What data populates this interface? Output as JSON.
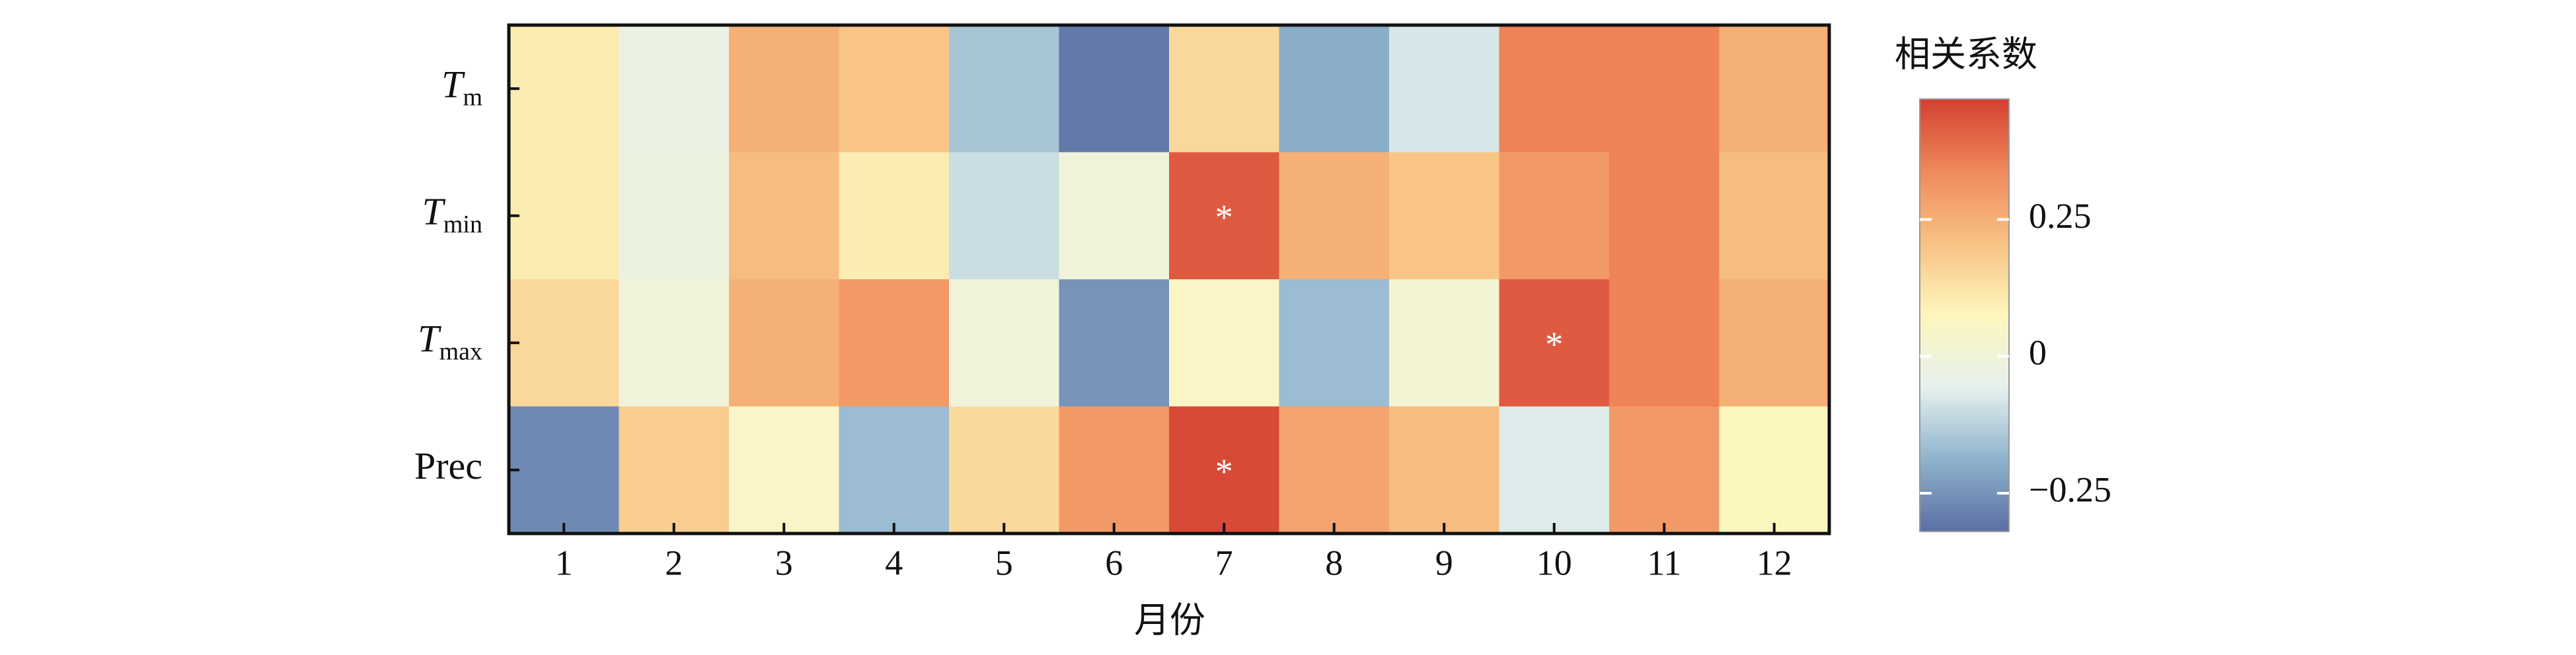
{
  "chart_data": {
    "type": "heatmap",
    "x_label": "月份",
    "categories": [
      "1",
      "2",
      "3",
      "4",
      "5",
      "6",
      "7",
      "8",
      "9",
      "10",
      "11",
      "12"
    ],
    "rows": [
      {
        "symbol": "T",
        "subscript": "m",
        "italic": true
      },
      {
        "symbol": "T",
        "subscript": "min",
        "italic": true
      },
      {
        "symbol": "T",
        "subscript": "max",
        "italic": true
      },
      {
        "symbol": "Prec",
        "italic": false
      }
    ],
    "z": [
      [
        0.1,
        -0.03,
        0.25,
        0.2,
        -0.15,
        -0.3,
        0.15,
        -0.2,
        -0.08,
        0.35,
        0.35,
        0.25
      ],
      [
        0.1,
        -0.02,
        0.22,
        0.1,
        -0.1,
        0.0,
        0.42,
        0.25,
        0.2,
        0.3,
        0.35,
        0.22
      ],
      [
        0.15,
        0.0,
        0.25,
        0.3,
        0.0,
        -0.25,
        0.05,
        -0.17,
        0.02,
        0.42,
        0.35,
        0.25
      ],
      [
        -0.27,
        0.18,
        0.05,
        -0.17,
        0.15,
        0.3,
        0.45,
        0.28,
        0.22,
        -0.07,
        0.3,
        0.07
      ]
    ],
    "cell_labels": [
      [
        null,
        null,
        null,
        null,
        null,
        null,
        null,
        null,
        null,
        null,
        null,
        null
      ],
      [
        null,
        null,
        null,
        null,
        null,
        null,
        "*",
        null,
        null,
        null,
        null,
        null
      ],
      [
        null,
        null,
        null,
        null,
        null,
        null,
        null,
        null,
        null,
        "*",
        null,
        null
      ],
      [
        null,
        null,
        null,
        null,
        null,
        null,
        "*",
        null,
        null,
        null,
        null,
        null
      ]
    ],
    "colorbar_title": "相关系数",
    "zlim": [
      -0.32,
      0.47
    ],
    "zticks": [
      {
        "value": -0.25,
        "label": "−0.25"
      },
      0,
      0.25
    ],
    "colormap": [
      "#5b6fa3",
      "#8fb3cc",
      "#e6f1ee",
      "#fdf6bd",
      "#f8c283",
      "#ef8a5a",
      "#d43f31"
    ]
  }
}
